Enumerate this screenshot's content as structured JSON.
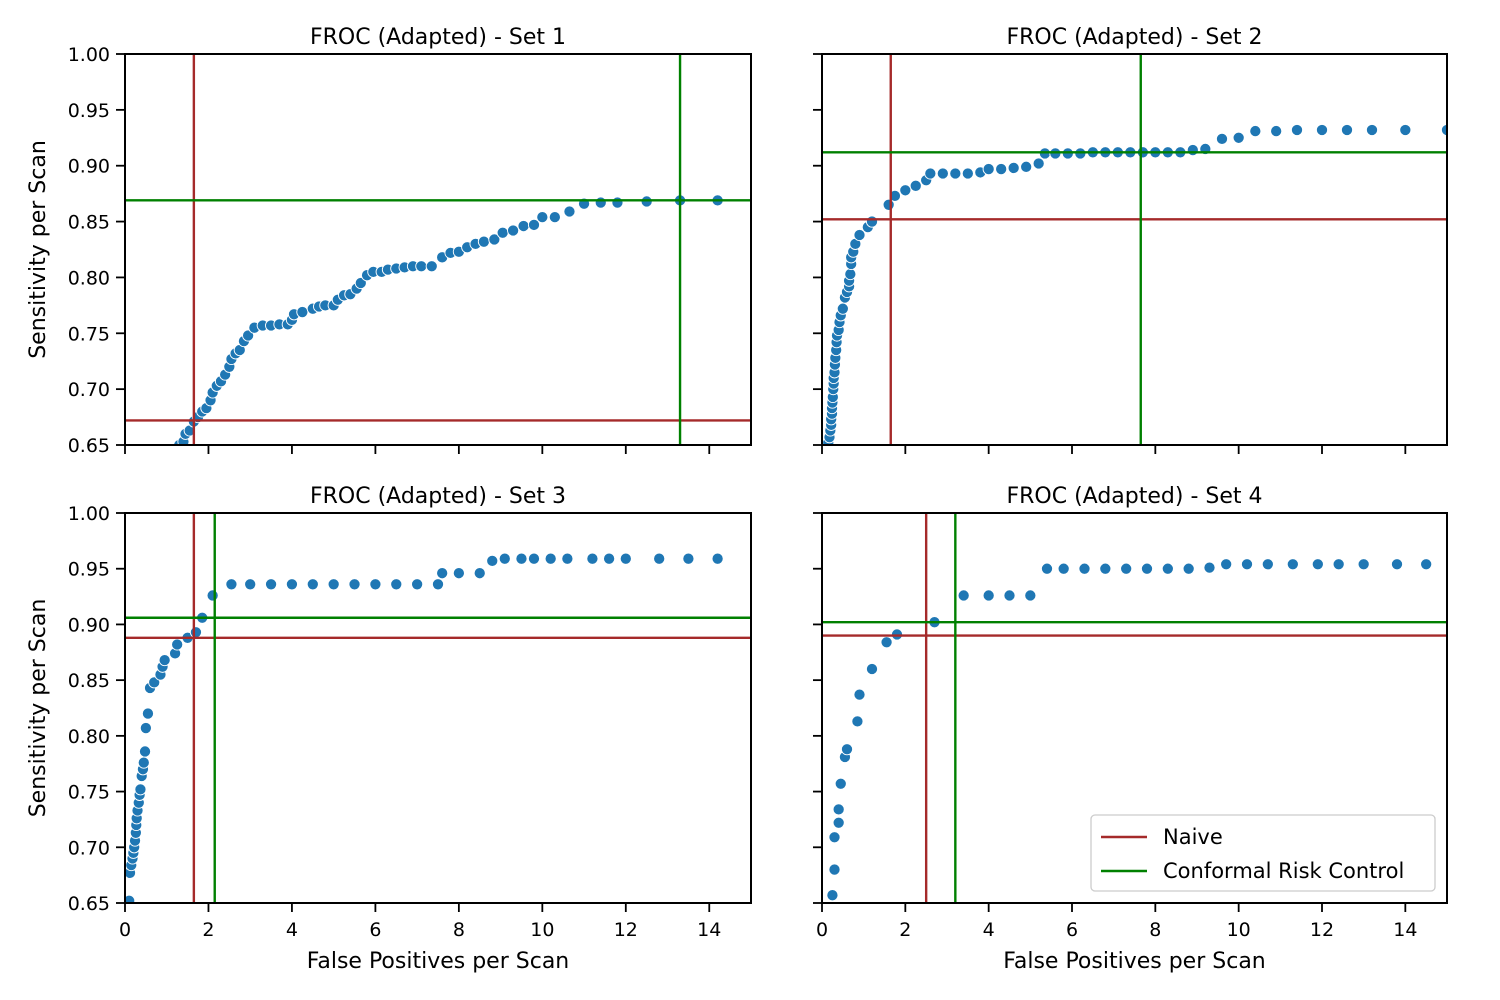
{
  "figure": {
    "xlabel": "False Positives per Scan",
    "ylabel": "Sensitivity per Scan",
    "legend": {
      "placement": "lower-right",
      "entries": [
        {
          "label": "Naive",
          "color": "#a52a2a"
        },
        {
          "label": "Conformal Risk Control",
          "color": "#008000"
        }
      ]
    },
    "marker_color": "#1f77b4"
  },
  "chart_data": [
    {
      "type": "scatter",
      "title": "FROC (Adapted) - Set 1",
      "xlim": [
        0,
        15
      ],
      "ylim": [
        0.65,
        1.0
      ],
      "xticks": [],
      "yticks": [
        "0.65",
        "0.70",
        "0.75",
        "0.80",
        "0.85",
        "0.90",
        "0.95",
        "1.00"
      ],
      "show_xlabel": false,
      "show_ylabel": true,
      "naive": {
        "x": 1.65,
        "y": 0.672
      },
      "crc": {
        "x": 13.3,
        "y": 0.869
      },
      "points": [
        [
          1.3,
          0.65
        ],
        [
          1.4,
          0.653
        ],
        [
          1.45,
          0.66
        ],
        [
          1.55,
          0.663
        ],
        [
          1.65,
          0.671
        ],
        [
          1.75,
          0.675
        ],
        [
          1.85,
          0.68
        ],
        [
          1.95,
          0.683
        ],
        [
          2.05,
          0.69
        ],
        [
          2.1,
          0.697
        ],
        [
          2.2,
          0.703
        ],
        [
          2.3,
          0.707
        ],
        [
          2.4,
          0.713
        ],
        [
          2.5,
          0.72
        ],
        [
          2.55,
          0.727
        ],
        [
          2.65,
          0.732
        ],
        [
          2.75,
          0.735
        ],
        [
          2.85,
          0.743
        ],
        [
          2.95,
          0.748
        ],
        [
          3.1,
          0.755
        ],
        [
          3.3,
          0.757
        ],
        [
          3.5,
          0.757
        ],
        [
          3.7,
          0.758
        ],
        [
          3.9,
          0.758
        ],
        [
          4.0,
          0.762
        ],
        [
          4.05,
          0.767
        ],
        [
          4.25,
          0.769
        ],
        [
          4.5,
          0.772
        ],
        [
          4.65,
          0.774
        ],
        [
          4.8,
          0.775
        ],
        [
          5.0,
          0.775
        ],
        [
          5.1,
          0.78
        ],
        [
          5.25,
          0.784
        ],
        [
          5.4,
          0.785
        ],
        [
          5.55,
          0.79
        ],
        [
          5.65,
          0.795
        ],
        [
          5.8,
          0.802
        ],
        [
          5.95,
          0.805
        ],
        [
          6.15,
          0.805
        ],
        [
          6.3,
          0.807
        ],
        [
          6.5,
          0.808
        ],
        [
          6.7,
          0.809
        ],
        [
          6.9,
          0.81
        ],
        [
          7.1,
          0.81
        ],
        [
          7.35,
          0.81
        ],
        [
          7.6,
          0.818
        ],
        [
          7.8,
          0.822
        ],
        [
          8.0,
          0.823
        ],
        [
          8.2,
          0.827
        ],
        [
          8.4,
          0.83
        ],
        [
          8.6,
          0.832
        ],
        [
          8.85,
          0.834
        ],
        [
          9.05,
          0.84
        ],
        [
          9.3,
          0.842
        ],
        [
          9.55,
          0.846
        ],
        [
          9.8,
          0.847
        ],
        [
          10.0,
          0.854
        ],
        [
          10.3,
          0.854
        ],
        [
          10.65,
          0.859
        ],
        [
          11.0,
          0.866
        ],
        [
          11.4,
          0.867
        ],
        [
          11.8,
          0.867
        ],
        [
          12.5,
          0.868
        ],
        [
          13.3,
          0.869
        ],
        [
          14.2,
          0.869
        ]
      ]
    },
    {
      "type": "scatter",
      "title": "FROC (Adapted) - Set 2",
      "xlim": [
        0,
        15
      ],
      "ylim": [
        0.65,
        1.0
      ],
      "xticks": [],
      "yticks": [],
      "show_xlabel": false,
      "show_ylabel": false,
      "naive": {
        "x": 1.65,
        "y": 0.852
      },
      "crc": {
        "x": 7.65,
        "y": 0.912
      },
      "points": [
        [
          0.15,
          0.652
        ],
        [
          0.18,
          0.657
        ],
        [
          0.2,
          0.663
        ],
        [
          0.22,
          0.668
        ],
        [
          0.22,
          0.673
        ],
        [
          0.24,
          0.678
        ],
        [
          0.24,
          0.683
        ],
        [
          0.25,
          0.688
        ],
        [
          0.26,
          0.693
        ],
        [
          0.27,
          0.7
        ],
        [
          0.28,
          0.705
        ],
        [
          0.28,
          0.71
        ],
        [
          0.3,
          0.715
        ],
        [
          0.31,
          0.722
        ],
        [
          0.32,
          0.728
        ],
        [
          0.34,
          0.735
        ],
        [
          0.35,
          0.742
        ],
        [
          0.36,
          0.748
        ],
        [
          0.4,
          0.753
        ],
        [
          0.42,
          0.76
        ],
        [
          0.45,
          0.766
        ],
        [
          0.5,
          0.772
        ],
        [
          0.55,
          0.782
        ],
        [
          0.6,
          0.787
        ],
        [
          0.65,
          0.792
        ],
        [
          0.65,
          0.797
        ],
        [
          0.68,
          0.803
        ],
        [
          0.7,
          0.812
        ],
        [
          0.7,
          0.818
        ],
        [
          0.75,
          0.823
        ],
        [
          0.8,
          0.83
        ],
        [
          0.9,
          0.838
        ],
        [
          1.1,
          0.845
        ],
        [
          1.2,
          0.85
        ],
        [
          1.6,
          0.865
        ],
        [
          1.75,
          0.873
        ],
        [
          2.0,
          0.878
        ],
        [
          2.25,
          0.882
        ],
        [
          2.5,
          0.887
        ],
        [
          2.6,
          0.893
        ],
        [
          2.9,
          0.893
        ],
        [
          3.2,
          0.893
        ],
        [
          3.5,
          0.893
        ],
        [
          3.8,
          0.894
        ],
        [
          4.0,
          0.897
        ],
        [
          4.3,
          0.897
        ],
        [
          4.6,
          0.898
        ],
        [
          4.9,
          0.899
        ],
        [
          5.2,
          0.902
        ],
        [
          5.35,
          0.911
        ],
        [
          5.6,
          0.911
        ],
        [
          5.9,
          0.911
        ],
        [
          6.2,
          0.911
        ],
        [
          6.5,
          0.912
        ],
        [
          6.8,
          0.912
        ],
        [
          7.1,
          0.912
        ],
        [
          7.4,
          0.912
        ],
        [
          7.7,
          0.912
        ],
        [
          8.0,
          0.912
        ],
        [
          8.3,
          0.912
        ],
        [
          8.6,
          0.912
        ],
        [
          8.9,
          0.914
        ],
        [
          9.2,
          0.915
        ],
        [
          9.6,
          0.924
        ],
        [
          10.0,
          0.925
        ],
        [
          10.4,
          0.931
        ],
        [
          10.9,
          0.931
        ],
        [
          11.4,
          0.932
        ],
        [
          12.0,
          0.932
        ],
        [
          12.6,
          0.932
        ],
        [
          13.2,
          0.932
        ],
        [
          14.0,
          0.932
        ],
        [
          15.0,
          0.932
        ]
      ]
    },
    {
      "type": "scatter",
      "title": "FROC (Adapted) - Set 3",
      "xlim": [
        0,
        15
      ],
      "ylim": [
        0.65,
        1.0
      ],
      "xticks": [
        "0",
        "2",
        "4",
        "6",
        "8",
        "10",
        "12",
        "14"
      ],
      "yticks": [
        "0.65",
        "0.70",
        "0.75",
        "0.80",
        "0.85",
        "0.90",
        "0.95",
        "1.00"
      ],
      "show_xlabel": true,
      "show_ylabel": true,
      "naive": {
        "x": 1.65,
        "y": 0.888
      },
      "crc": {
        "x": 2.15,
        "y": 0.906
      },
      "points": [
        [
          0.1,
          0.652
        ],
        [
          0.12,
          0.677
        ],
        [
          0.15,
          0.684
        ],
        [
          0.18,
          0.69
        ],
        [
          0.2,
          0.695
        ],
        [
          0.22,
          0.7
        ],
        [
          0.24,
          0.706
        ],
        [
          0.26,
          0.713
        ],
        [
          0.27,
          0.72
        ],
        [
          0.28,
          0.726
        ],
        [
          0.3,
          0.733
        ],
        [
          0.33,
          0.74
        ],
        [
          0.35,
          0.747
        ],
        [
          0.37,
          0.752
        ],
        [
          0.4,
          0.764
        ],
        [
          0.43,
          0.77
        ],
        [
          0.45,
          0.776
        ],
        [
          0.48,
          0.786
        ],
        [
          0.5,
          0.807
        ],
        [
          0.55,
          0.82
        ],
        [
          0.6,
          0.843
        ],
        [
          0.7,
          0.848
        ],
        [
          0.85,
          0.855
        ],
        [
          0.9,
          0.862
        ],
        [
          0.95,
          0.868
        ],
        [
          1.2,
          0.874
        ],
        [
          1.25,
          0.882
        ],
        [
          1.5,
          0.888
        ],
        [
          1.7,
          0.893
        ],
        [
          1.85,
          0.906
        ],
        [
          2.1,
          0.926
        ],
        [
          2.55,
          0.936
        ],
        [
          3.0,
          0.936
        ],
        [
          3.5,
          0.936
        ],
        [
          4.0,
          0.936
        ],
        [
          4.5,
          0.936
        ],
        [
          5.0,
          0.936
        ],
        [
          5.5,
          0.936
        ],
        [
          6.0,
          0.936
        ],
        [
          6.5,
          0.936
        ],
        [
          7.0,
          0.936
        ],
        [
          7.5,
          0.936
        ],
        [
          7.6,
          0.946
        ],
        [
          8.0,
          0.946
        ],
        [
          8.5,
          0.946
        ],
        [
          8.8,
          0.957
        ],
        [
          9.1,
          0.959
        ],
        [
          9.5,
          0.959
        ],
        [
          9.8,
          0.959
        ],
        [
          10.2,
          0.959
        ],
        [
          10.6,
          0.959
        ],
        [
          11.2,
          0.959
        ],
        [
          11.6,
          0.959
        ],
        [
          12.0,
          0.959
        ],
        [
          12.8,
          0.959
        ],
        [
          13.5,
          0.959
        ],
        [
          14.2,
          0.959
        ]
      ]
    },
    {
      "type": "scatter",
      "title": "FROC (Adapted) - Set 4",
      "xlim": [
        0,
        15
      ],
      "ylim": [
        0.65,
        1.0
      ],
      "xticks": [
        "0",
        "2",
        "4",
        "6",
        "8",
        "10",
        "12",
        "14"
      ],
      "yticks": [],
      "show_xlabel": true,
      "show_ylabel": false,
      "naive": {
        "x": 2.5,
        "y": 0.89
      },
      "crc": {
        "x": 3.2,
        "y": 0.902
      },
      "points": [
        [
          0.25,
          0.657
        ],
        [
          0.3,
          0.68
        ],
        [
          0.3,
          0.709
        ],
        [
          0.4,
          0.722
        ],
        [
          0.4,
          0.734
        ],
        [
          0.45,
          0.757
        ],
        [
          0.55,
          0.781
        ],
        [
          0.6,
          0.788
        ],
        [
          0.85,
          0.813
        ],
        [
          0.9,
          0.837
        ],
        [
          1.2,
          0.86
        ],
        [
          1.55,
          0.884
        ],
        [
          1.8,
          0.891
        ],
        [
          2.7,
          0.902
        ],
        [
          3.4,
          0.926
        ],
        [
          4.0,
          0.926
        ],
        [
          4.5,
          0.926
        ],
        [
          5.0,
          0.926
        ],
        [
          5.4,
          0.95
        ],
        [
          5.8,
          0.95
        ],
        [
          6.3,
          0.95
        ],
        [
          6.8,
          0.95
        ],
        [
          7.3,
          0.95
        ],
        [
          7.8,
          0.95
        ],
        [
          8.3,
          0.95
        ],
        [
          8.8,
          0.95
        ],
        [
          9.3,
          0.951
        ],
        [
          9.7,
          0.954
        ],
        [
          10.2,
          0.954
        ],
        [
          10.7,
          0.954
        ],
        [
          11.3,
          0.954
        ],
        [
          11.9,
          0.954
        ],
        [
          12.4,
          0.954
        ],
        [
          13.0,
          0.954
        ],
        [
          13.8,
          0.954
        ],
        [
          14.5,
          0.954
        ]
      ]
    }
  ]
}
